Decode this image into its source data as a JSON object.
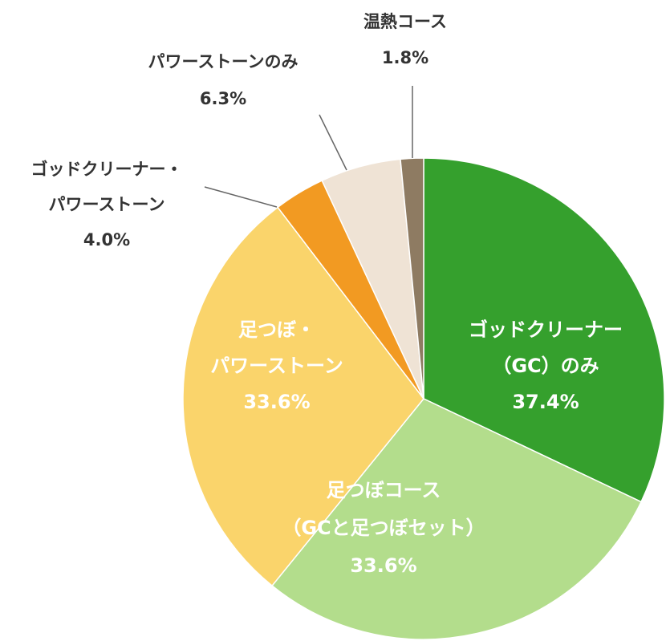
{
  "chart_data": {
    "type": "pie",
    "categories": [
      [
        "ゴッドクリーナー",
        "（GC）のみ"
      ],
      [
        "足つぼコース",
        "（GCと足つぼセット）"
      ],
      [
        "足つぼ・",
        "パワーストーン"
      ],
      [
        "ゴッドクリーナー・",
        "パワーストーン"
      ],
      [
        "パワーストーンのみ"
      ],
      [
        "温熱コース"
      ]
    ],
    "values": [
      37.4,
      33.6,
      33.6,
      4.0,
      6.3,
      1.8
    ],
    "value_labels": [
      "37.4%",
      "33.6%",
      "33.6%",
      "4.0%",
      "6.3%",
      "1.8%"
    ],
    "colors": [
      "#35a02d",
      "#b3dd8c",
      "#fad46b",
      "#f29a22",
      "#efe3d5",
      "#8e7b62"
    ]
  }
}
